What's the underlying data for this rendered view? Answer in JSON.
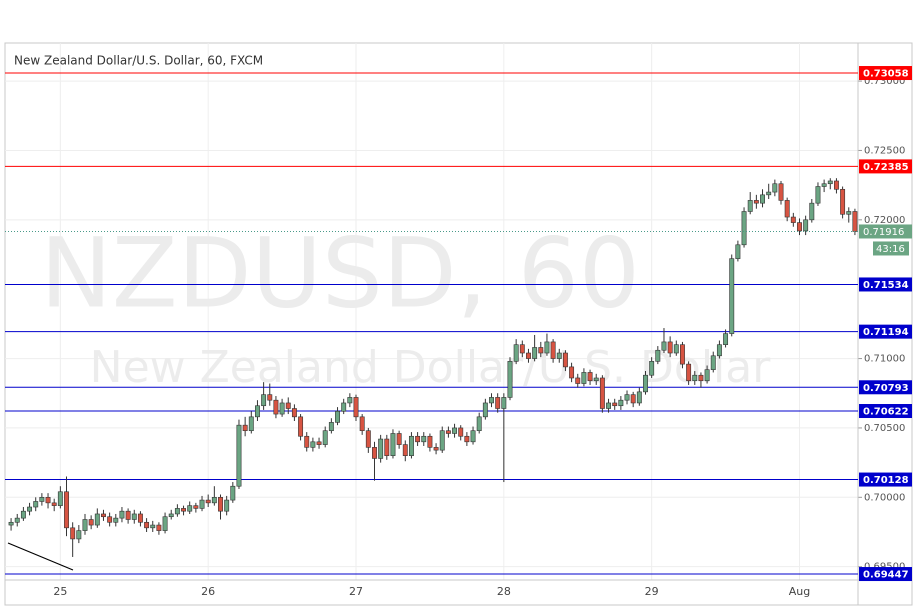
{
  "chart_data": {
    "type": "candlestick",
    "title": "New Zealand Dollar/U.S. Dollar, 60, FXCM",
    "watermark": "NZDUSD, 60",
    "watermark_subtitle": "New Zealand Dollar/U.S. Dollar",
    "ylim": [
      0.69404,
      0.7326
    ],
    "yticks": [
      {
        "value": 0.695,
        "label": "0.69500"
      },
      {
        "value": 0.7,
        "label": "0.70000"
      },
      {
        "value": 0.705,
        "label": "0.70500"
      },
      {
        "value": 0.71,
        "label": "0.71000"
      },
      {
        "value": 0.72,
        "label": "0.72000"
      },
      {
        "value": 0.725,
        "label": "0.72500"
      },
      {
        "value": 0.73,
        "label": "0.73000"
      }
    ],
    "grid": true,
    "up_color": "#6ba583",
    "down_color": "#d75442",
    "levels": [
      {
        "value": 0.73058,
        "color": "#ff0000"
      },
      {
        "value": 0.72385,
        "color": "#ff0000"
      },
      {
        "value": 0.71534,
        "color": "#0000cc"
      },
      {
        "value": 0.71194,
        "color": "#0000cc"
      },
      {
        "value": 0.70793,
        "color": "#0000cc"
      },
      {
        "value": 0.70622,
        "color": "#0000cc"
      },
      {
        "value": 0.70128,
        "color": "#0000cc"
      },
      {
        "value": 0.69447,
        "color": "#0000cc"
      }
    ],
    "current_price": 0.71916,
    "current_color": "#6ba583",
    "countdown": "43:16",
    "categories": [
      null,
      null,
      null,
      null,
      null,
      null,
      null,
      null,
      "25",
      null,
      null,
      null,
      null,
      null,
      null,
      null,
      null,
      null,
      null,
      null,
      null,
      null,
      null,
      null,
      null,
      null,
      null,
      null,
      null,
      null,
      null,
      null,
      "26",
      null,
      null,
      null,
      null,
      null,
      null,
      null,
      null,
      null,
      null,
      null,
      null,
      null,
      null,
      null,
      null,
      null,
      null,
      null,
      null,
      null,
      null,
      null,
      "27",
      null,
      null,
      null,
      null,
      null,
      null,
      null,
      null,
      null,
      null,
      null,
      null,
      null,
      null,
      null,
      null,
      null,
      null,
      null,
      null,
      null,
      null,
      null,
      "28",
      null,
      null,
      null,
      null,
      null,
      null,
      null,
      null,
      null,
      null,
      null,
      null,
      null,
      null,
      null,
      null,
      null,
      null,
      null,
      null,
      null,
      null,
      null,
      "29",
      null,
      null,
      null,
      null,
      null,
      null,
      null,
      null,
      null,
      null,
      null,
      null,
      null,
      null,
      null,
      null,
      null,
      null,
      null,
      null,
      null,
      null,
      null,
      "Aug",
      null,
      null,
      null,
      null,
      null,
      null,
      null,
      null,
      null
    ],
    "open": [
      0.698,
      0.6982,
      0.6985,
      0.699,
      0.6993,
      0.6997,
      0.7,
      0.6996,
      0.6994,
      0.7004,
      0.6978,
      0.697,
      0.6976,
      0.6984,
      0.698,
      0.6988,
      0.6986,
      0.6982,
      0.6985,
      0.699,
      0.6984,
      0.6988,
      0.6982,
      0.6978,
      0.698,
      0.6976,
      0.6986,
      0.6988,
      0.6992,
      0.699,
      0.6994,
      0.6992,
      0.6998,
      0.6996,
      0.7,
      0.699,
      0.6998,
      0.7008,
      0.7052,
      0.7048,
      0.7058,
      0.7066,
      0.7074,
      0.707,
      0.706,
      0.7068,
      0.7064,
      0.7058,
      0.7044,
      0.7036,
      0.704,
      0.7038,
      0.7048,
      0.7054,
      0.7062,
      0.7068,
      0.7072,
      0.7058,
      0.7048,
      0.7036,
      0.7028,
      0.7042,
      0.703,
      0.7046,
      0.7038,
      0.703,
      0.7044,
      0.704,
      0.7044,
      0.7036,
      0.7034,
      0.7048,
      0.7046,
      0.705,
      0.7044,
      0.704,
      0.7048,
      0.7058,
      0.7068,
      0.7072,
      0.7064,
      0.7072,
      0.7098,
      0.711,
      0.7104,
      0.71,
      0.7108,
      0.7104,
      0.7112,
      0.71,
      0.7104,
      0.7094,
      0.7086,
      0.7082,
      0.709,
      0.7084,
      0.7086,
      0.7064,
      0.7068,
      0.7066,
      0.707,
      0.7074,
      0.7068,
      0.7076,
      0.7088,
      0.7098,
      0.7106,
      0.7112,
      0.7104,
      0.711,
      0.7096,
      0.7084,
      0.7088,
      0.7084,
      0.7092,
      0.7102,
      0.711,
      0.7118,
      0.7172,
      0.7182,
      0.7206,
      0.7214,
      0.7212,
      0.7218,
      0.722,
      0.7226,
      0.7214,
      0.7202,
      0.7198,
      0.7192,
      0.72,
      0.7212,
      0.7224,
      0.7226,
      0.7228,
      0.7222,
      0.7204,
      0.7206
    ],
    "high": [
      0.6985,
      0.6988,
      0.6993,
      0.6996,
      0.7,
      0.7003,
      0.7003,
      0.6999,
      0.7008,
      0.7015,
      0.6982,
      0.698,
      0.6988,
      0.6987,
      0.6992,
      0.6991,
      0.6989,
      0.6988,
      0.6993,
      0.6992,
      0.6991,
      0.699,
      0.6985,
      0.6983,
      0.6982,
      0.6989,
      0.6991,
      0.6995,
      0.6994,
      0.6997,
      0.6996,
      0.7001,
      0.7002,
      0.7008,
      0.7002,
      0.7001,
      0.7011,
      0.7056,
      0.7058,
      0.7062,
      0.707,
      0.7083,
      0.7082,
      0.7073,
      0.7071,
      0.7072,
      0.7067,
      0.706,
      0.7047,
      0.7043,
      0.7043,
      0.7051,
      0.7057,
      0.7065,
      0.7071,
      0.7075,
      0.7074,
      0.706,
      0.705,
      0.704,
      0.7045,
      0.7045,
      0.7049,
      0.7048,
      0.7041,
      0.7047,
      0.7047,
      0.7047,
      0.7046,
      0.7039,
      0.7051,
      0.7051,
      0.7053,
      0.7052,
      0.7047,
      0.7051,
      0.7061,
      0.7071,
      0.7075,
      0.7075,
      0.7075,
      0.7101,
      0.7114,
      0.7113,
      0.7107,
      0.7117,
      0.7112,
      0.7118,
      0.7114,
      0.7107,
      0.7106,
      0.7097,
      0.7089,
      0.7093,
      0.7092,
      0.7089,
      0.7088,
      0.7071,
      0.7071,
      0.7073,
      0.7077,
      0.7076,
      0.7079,
      0.7091,
      0.7101,
      0.7109,
      0.7122,
      0.7116,
      0.7113,
      0.7112,
      0.7098,
      0.7091,
      0.709,
      0.7095,
      0.7105,
      0.7113,
      0.7121,
      0.7175,
      0.7185,
      0.7209,
      0.722,
      0.7218,
      0.7222,
      0.7226,
      0.7229,
      0.7228,
      0.7216,
      0.7205,
      0.7201,
      0.7203,
      0.7215,
      0.7227,
      0.7229,
      0.723,
      0.723,
      0.7224,
      0.7209,
      0.7208
    ],
    "low": [
      0.6976,
      0.6979,
      0.6983,
      0.6987,
      0.699,
      0.6994,
      0.6992,
      0.699,
      0.6992,
      0.6972,
      0.6957,
      0.6967,
      0.6973,
      0.6977,
      0.6978,
      0.6983,
      0.6979,
      0.6979,
      0.6982,
      0.6981,
      0.6981,
      0.6979,
      0.6975,
      0.6975,
      0.6973,
      0.6974,
      0.6984,
      0.6986,
      0.6987,
      0.6988,
      0.6989,
      0.699,
      0.6993,
      0.6994,
      0.6984,
      0.6987,
      0.6996,
      0.7006,
      0.7044,
      0.7046,
      0.7055,
      0.7063,
      0.7066,
      0.7057,
      0.7058,
      0.706,
      0.7055,
      0.7041,
      0.7033,
      0.7033,
      0.7035,
      0.7036,
      0.7046,
      0.7052,
      0.706,
      0.7065,
      0.7055,
      0.7045,
      0.7032,
      0.7012,
      0.7025,
      0.7027,
      0.7028,
      0.7035,
      0.7026,
      0.7028,
      0.7037,
      0.7037,
      0.7033,
      0.7031,
      0.7032,
      0.7043,
      0.7043,
      0.7041,
      0.7037,
      0.7038,
      0.7046,
      0.7056,
      0.7065,
      0.7061,
      0.7011,
      0.707,
      0.7096,
      0.7101,
      0.7097,
      0.7098,
      0.7101,
      0.7102,
      0.7097,
      0.7097,
      0.7091,
      0.7083,
      0.7079,
      0.708,
      0.7081,
      0.7081,
      0.7061,
      0.7061,
      0.7063,
      0.7063,
      0.7067,
      0.7065,
      0.7066,
      0.7074,
      0.7086,
      0.7096,
      0.7104,
      0.7101,
      0.7102,
      0.7093,
      0.7081,
      0.7081,
      0.7079,
      0.7082,
      0.709,
      0.71,
      0.7108,
      0.7116,
      0.717,
      0.718,
      0.7204,
      0.7208,
      0.7209,
      0.7215,
      0.7217,
      0.7211,
      0.7199,
      0.7195,
      0.7189,
      0.7189,
      0.7198,
      0.721,
      0.722,
      0.7222,
      0.7219,
      0.7201,
      0.7198,
      0.7189
    ],
    "close": [
      0.6982,
      0.6985,
      0.699,
      0.6993,
      0.6997,
      0.7,
      0.6996,
      0.6994,
      0.7004,
      0.6978,
      0.697,
      0.6976,
      0.6984,
      0.698,
      0.6988,
      0.6986,
      0.6982,
      0.6985,
      0.699,
      0.6984,
      0.6988,
      0.6982,
      0.6978,
      0.698,
      0.6976,
      0.6986,
      0.6988,
      0.6992,
      0.699,
      0.6994,
      0.6992,
      0.6998,
      0.6996,
      0.7,
      0.699,
      0.6998,
      0.7008,
      0.7052,
      0.7048,
      0.7058,
      0.7066,
      0.7074,
      0.707,
      0.706,
      0.7068,
      0.7064,
      0.7058,
      0.7044,
      0.7036,
      0.704,
      0.7038,
      0.7048,
      0.7054,
      0.7062,
      0.7068,
      0.7072,
      0.7058,
      0.7048,
      0.7036,
      0.7028,
      0.7042,
      0.703,
      0.7046,
      0.7038,
      0.703,
      0.7044,
      0.704,
      0.7044,
      0.7036,
      0.7034,
      0.7048,
      0.7046,
      0.705,
      0.7044,
      0.704,
      0.7048,
      0.7058,
      0.7068,
      0.7072,
      0.7064,
      0.7072,
      0.7098,
      0.711,
      0.7104,
      0.71,
      0.7108,
      0.7104,
      0.7112,
      0.71,
      0.7104,
      0.7094,
      0.7086,
      0.7082,
      0.709,
      0.7084,
      0.7086,
      0.7064,
      0.7068,
      0.7066,
      0.707,
      0.7074,
      0.7068,
      0.7076,
      0.7088,
      0.7098,
      0.7106,
      0.7112,
      0.7104,
      0.711,
      0.7096,
      0.7084,
      0.7088,
      0.7084,
      0.7092,
      0.7102,
      0.711,
      0.7118,
      0.7172,
      0.7182,
      0.7206,
      0.7214,
      0.7212,
      0.7218,
      0.722,
      0.7226,
      0.7214,
      0.7202,
      0.7198,
      0.7192,
      0.72,
      0.7212,
      0.7224,
      0.7226,
      0.7228,
      0.7222,
      0.7204,
      0.7206,
      0.71916
    ]
  }
}
